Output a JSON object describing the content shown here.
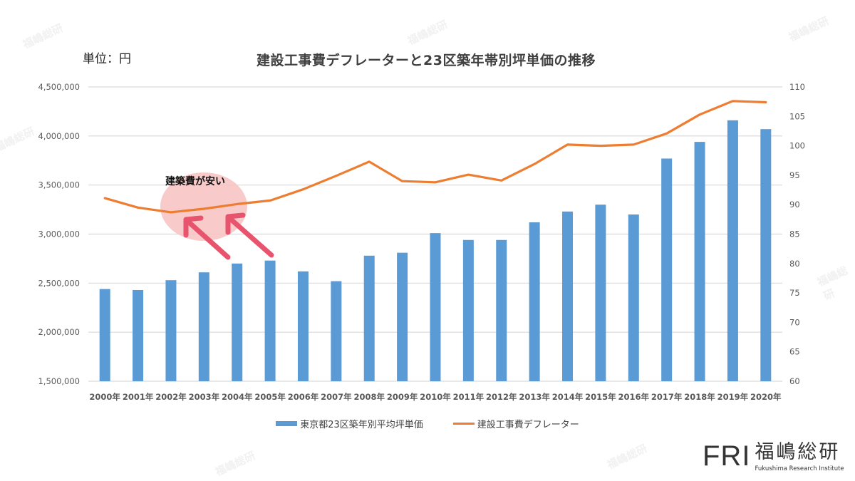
{
  "header": {
    "unit_label": "単位：円",
    "title": "建設工事費デフレーターと23区築年帯別坪単価の推移"
  },
  "annotation": {
    "text": "建築費が安い",
    "highlight_color": "#F8C1C1",
    "arrow_color": "#E8546E"
  },
  "legend": {
    "bar_label": "東京都23区築年別平均坪単価",
    "line_label": "建設工事費デフレーター"
  },
  "logo": {
    "mark": "FRI",
    "name_jp": "福嶋総研",
    "name_en": "Fukushima Research Institute"
  },
  "watermark_text": "福嶋総研",
  "colors": {
    "bar": "#5B9BD5",
    "line": "#ED7D31",
    "grid": "#D9D9D9",
    "axis_text": "#595959"
  },
  "chart_data": {
    "type": "bar+line",
    "title": "建設工事費デフレーターと23区築年帯別坪単価の推移",
    "xlabel": "",
    "ylabel_left": "単位：円",
    "ylabel_right": "",
    "categories": [
      "2000年",
      "2001年",
      "2002年",
      "2003年",
      "2004年",
      "2005年",
      "2006年",
      "2007年",
      "2008年",
      "2009年",
      "2010年",
      "2011年",
      "2012年",
      "2013年",
      "2014年",
      "2015年",
      "2016年",
      "2017年",
      "2018年",
      "2019年",
      "2020年"
    ],
    "series": [
      {
        "name": "東京都23区築年別平均坪単価",
        "type": "bar",
        "axis": "left",
        "values": [
          2440000,
          2430000,
          2530000,
          2610000,
          2700000,
          2730000,
          2620000,
          2520000,
          2780000,
          2810000,
          3010000,
          2940000,
          2940000,
          3120000,
          3230000,
          3300000,
          3200000,
          3770000,
          3940000,
          4160000,
          4070000
        ]
      },
      {
        "name": "建設工事費デフレーター",
        "type": "line",
        "axis": "right",
        "values": [
          91.1,
          89.5,
          88.7,
          89.3,
          90.1,
          90.7,
          92.6,
          94.9,
          97.3,
          94.0,
          93.8,
          95.1,
          94.1,
          96.9,
          100.2,
          100.0,
          100.2,
          102.1,
          105.3,
          107.6,
          107.4
        ]
      }
    ],
    "ylim_left": [
      1500000,
      4500000
    ],
    "yticks_left": [
      "1,500,000",
      "2,000,000",
      "2,500,000",
      "3,000,000",
      "3,500,000",
      "4,000,000",
      "4,500,000"
    ],
    "ylim_right": [
      60,
      110
    ],
    "yticks_right": [
      "60",
      "65",
      "70",
      "75",
      "80",
      "85",
      "90",
      "95",
      "100",
      "105",
      "110"
    ],
    "grid": true,
    "legend_position": "bottom",
    "annotations": [
      {
        "text": "建築費が安い",
        "target": "2002年-2004年 deflator trough",
        "style": "pink circle with two arrows"
      }
    ]
  }
}
